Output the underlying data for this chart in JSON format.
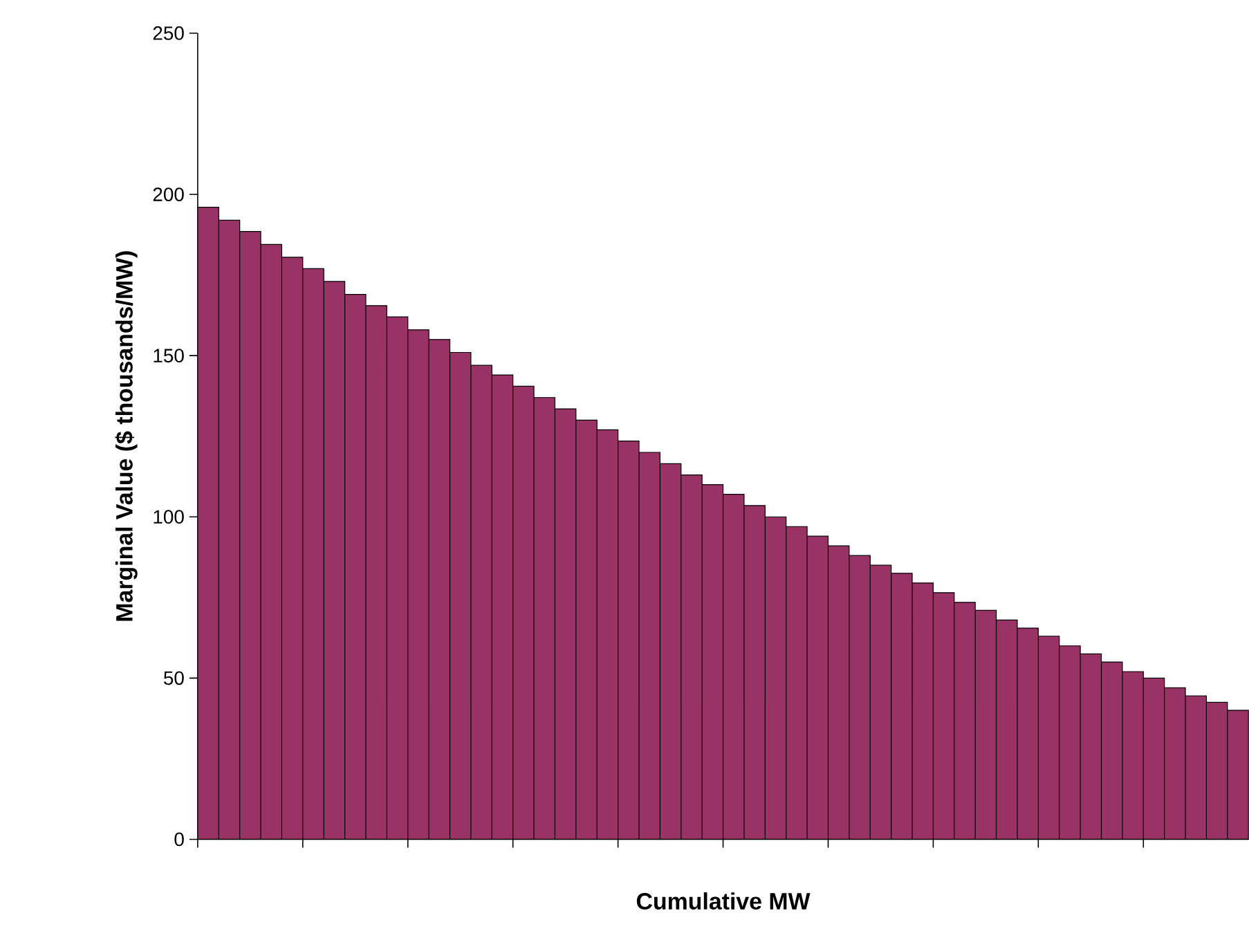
{
  "chart_data": {
    "type": "bar",
    "xlabel": "Cumulative MW",
    "ylabel": "Marginal Value ($ thousands/MW)",
    "categories": [
      null,
      null,
      null,
      null,
      null,
      null,
      null,
      null,
      null,
      null,
      null,
      null,
      null,
      null,
      null,
      null,
      null,
      null,
      null,
      null,
      null,
      null,
      null,
      null,
      null,
      null,
      null,
      null,
      null,
      null,
      null,
      null,
      null,
      null,
      null,
      null,
      null,
      null,
      null,
      null,
      null,
      null,
      null,
      null,
      null,
      null,
      null,
      null,
      null,
      null
    ],
    "values": [
      196,
      192,
      188.5,
      184.5,
      180.5,
      177,
      173,
      169,
      165.5,
      162,
      158,
      155,
      151,
      147,
      144,
      140.5,
      137,
      133.5,
      130,
      127,
      123.5,
      120,
      116.5,
      113,
      110,
      107,
      103.5,
      100,
      97,
      94,
      91,
      88,
      85,
      82.5,
      79.5,
      76.5,
      73.5,
      71,
      68,
      65.5,
      63,
      60,
      57.5,
      55,
      52,
      50,
      47,
      44.5,
      42.5,
      40
    ],
    "color": "#993366",
    "ylim": [
      0,
      250
    ],
    "yticks": [
      0,
      50,
      100,
      150,
      200,
      250
    ],
    "grid": false
  }
}
